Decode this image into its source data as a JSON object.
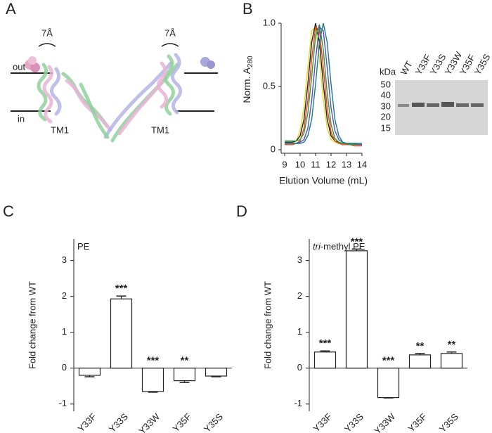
{
  "panels": {
    "a": "A",
    "b": "B",
    "c": "C",
    "d": "D"
  },
  "structure": {
    "shift_left": "7Å",
    "shift_right": "7Å",
    "out": "out",
    "in": "in",
    "tm_left": "TM1",
    "tm_right": "TM1"
  },
  "gel": {
    "unit": "kDa",
    "lanes": [
      "WT",
      "Y33F",
      "Y33S",
      "Y33W",
      "Y35F",
      "Y35S"
    ],
    "markers": [
      50,
      40,
      30,
      20,
      15
    ]
  },
  "chart_data": [
    {
      "type": "line",
      "x_label": "Elution Volume (mL)",
      "y_label": "Norm. A",
      "y_label_sub": "280",
      "x": [
        9,
        9.25,
        9.5,
        9.75,
        10,
        10.25,
        10.5,
        10.75,
        11,
        11.25,
        11.5,
        11.75,
        12,
        12.25,
        12.5,
        12.75,
        13,
        13.25,
        13.5,
        13.75,
        14
      ],
      "series": [
        {
          "color": "#e6dc1e",
          "values": [
            0.05,
            0.05,
            0.05,
            0.07,
            0.15,
            0.34,
            0.65,
            0.94,
            0.97,
            0.72,
            0.39,
            0.17,
            0.08,
            0.06,
            0.05,
            0.05,
            0.05,
            0.05,
            0.05,
            0.05,
            0.05
          ]
        },
        {
          "color": "#222222",
          "values": [
            0.06,
            0.06,
            0.06,
            0.07,
            0.11,
            0.24,
            0.52,
            0.85,
            1.0,
            0.85,
            0.52,
            0.24,
            0.11,
            0.07,
            0.06,
            0.05,
            0.05,
            0.04,
            0.04,
            0.04,
            0.04
          ]
        },
        {
          "color": "#f0401e",
          "values": [
            0.04,
            0.04,
            0.04,
            0.05,
            0.07,
            0.17,
            0.39,
            0.72,
            0.97,
            0.94,
            0.65,
            0.33,
            0.14,
            0.07,
            0.05,
            0.04,
            0.04,
            0.04,
            0.03,
            0.03,
            0.03
          ]
        },
        {
          "color": "#2a9a3a",
          "values": [
            0.07,
            0.07,
            0.07,
            0.07,
            0.08,
            0.13,
            0.29,
            0.58,
            0.9,
            0.99,
            0.79,
            0.45,
            0.2,
            0.09,
            0.06,
            0.05,
            0.05,
            0.04,
            0.04,
            0.04,
            0.04
          ]
        },
        {
          "color": "#5050c0",
          "values": [
            0.05,
            0.05,
            0.05,
            0.05,
            0.06,
            0.08,
            0.17,
            0.39,
            0.72,
            0.97,
            0.94,
            0.65,
            0.33,
            0.15,
            0.08,
            0.06,
            0.05,
            0.05,
            0.05,
            0.04,
            0.04
          ]
        },
        {
          "color": "#1a7a8a",
          "values": [
            0.05,
            0.05,
            0.05,
            0.05,
            0.05,
            0.06,
            0.11,
            0.24,
            0.52,
            0.85,
            1.0,
            0.85,
            0.52,
            0.24,
            0.11,
            0.06,
            0.05,
            0.05,
            0.05,
            0.05,
            0.05
          ]
        }
      ],
      "xlim": [
        9,
        14
      ],
      "xticks": [
        9,
        10,
        11,
        12,
        13,
        14
      ],
      "ylim": [
        0,
        1
      ],
      "yticks": [
        0,
        0.5,
        {
          "value": 1,
          "label": "1.0"
        }
      ]
    },
    {
      "type": "bar",
      "title": "PE",
      "y_label": "Fold change from WT",
      "categories": [
        "Y33F",
        "Y33S",
        "Y33W",
        "Y35F",
        "Y35S"
      ],
      "values": [
        -0.2,
        1.93,
        -0.65,
        -0.35,
        -0.22
      ],
      "errors": [
        0.04,
        0.08,
        0.02,
        0.05,
        0.02
      ],
      "annotations": [
        null,
        "***",
        "***",
        "**",
        null
      ],
      "ylim": [
        -1.2,
        3.6
      ],
      "yticks": [
        -1,
        0,
        1,
        2,
        3
      ],
      "color": "#ffffff"
    },
    {
      "type": "bar",
      "title_italic": "tri",
      "title": "-methyl PE",
      "y_label": "Fold change from WT",
      "categories": [
        "Y33F",
        "Y33S",
        "Y33W",
        "Y35F",
        "Y35S"
      ],
      "values": [
        0.45,
        3.27,
        -0.82,
        0.37,
        0.41
      ],
      "errors": [
        0.03,
        0.05,
        0.01,
        0.04,
        0.04
      ],
      "annotations": [
        "***",
        "***",
        "***",
        "**",
        "**"
      ],
      "ylim": [
        -1.2,
        3.6
      ],
      "yticks": [
        -1,
        0,
        1,
        2,
        3
      ],
      "color": "#ffffff"
    }
  ]
}
